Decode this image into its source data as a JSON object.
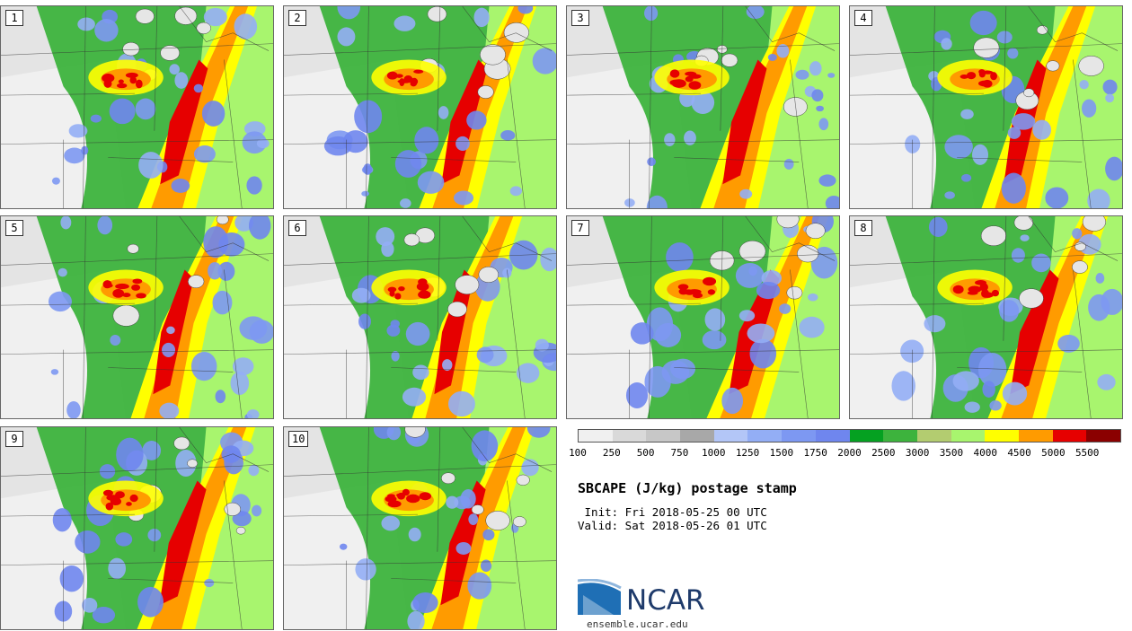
{
  "panels": [
    {
      "label": "1"
    },
    {
      "label": "2"
    },
    {
      "label": "3"
    },
    {
      "label": "4"
    },
    {
      "label": "5"
    },
    {
      "label": "6"
    },
    {
      "label": "7"
    },
    {
      "label": "8"
    },
    {
      "label": "9"
    },
    {
      "label": "10"
    }
  ],
  "colorbar": {
    "colors": [
      "#f0f0f0",
      "#d9d9d9",
      "#c7c7c7",
      "#a8a8a8",
      "#b3c6f7",
      "#93aef5",
      "#7d98f2",
      "#6f86ee",
      "#05a121",
      "#3db33d",
      "#b3cc70",
      "#a8f56e",
      "#ffff00",
      "#ff9b00",
      "#e60000",
      "#8b0000"
    ],
    "ticks": [
      "100",
      "250",
      "500",
      "750",
      "1000",
      "1250",
      "1500",
      "1750",
      "2000",
      "2500",
      "3000",
      "3500",
      "4000",
      "4500",
      "5000",
      "5500"
    ]
  },
  "title": "SBCAPE (J/kg) postage stamp",
  "init": " Init: Fri 2018-05-25 00 UTC",
  "valid": "Valid: Sat 2018-05-26 01 UTC",
  "logo": {
    "text": "NCAR",
    "colors": {
      "blue": "#1f6fb5",
      "navy": "#1f3b6b"
    }
  },
  "site": "ensemble.ucar.edu"
}
